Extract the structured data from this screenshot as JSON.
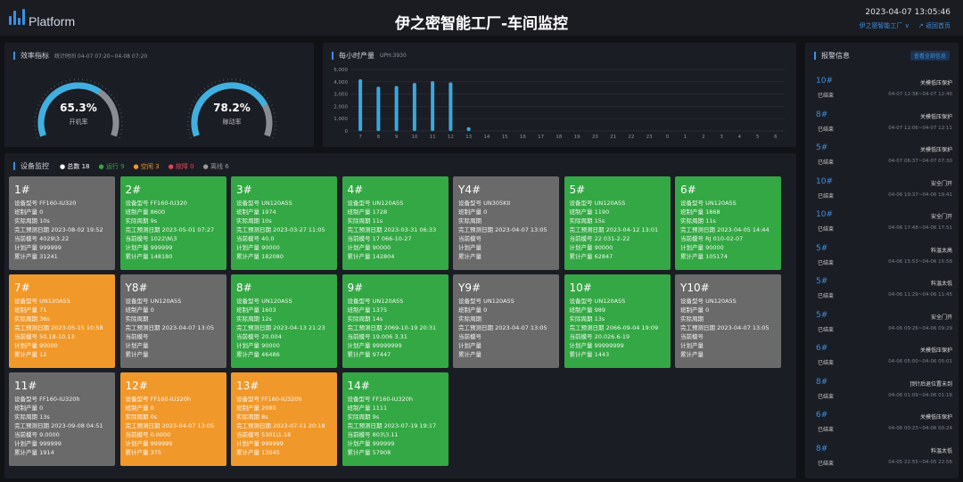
{
  "header": {
    "logo_text": "Platform",
    "title": "伊之密智能工厂-车间监控",
    "datetime": "2023-04-07 13:05:46",
    "factory_select": "伊之密智能工厂 ∨",
    "back_link": "↗ 返回首页"
  },
  "efficiency": {
    "title": "效率指标",
    "period": "统计时间 04-07 07:20~04-08 07:20",
    "gauges": [
      {
        "value": "65.3%",
        "percent": 65.3,
        "label": "开机率"
      },
      {
        "value": "78.2%",
        "percent": 78.2,
        "label": "稼动率"
      }
    ]
  },
  "colors": {
    "accent": "#3d8fe0",
    "running": "#34a844",
    "idle": "#f0982a",
    "offline": "#6a6a6a",
    "fault": "#e0455a"
  },
  "chart_data": {
    "type": "bar",
    "title": "每小时产量",
    "subtitle": "UPH:3930",
    "categories": [
      "7",
      "8",
      "9",
      "10",
      "11",
      "12",
      "13",
      "14",
      "15",
      "16",
      "17",
      "18",
      "19",
      "20",
      "21",
      "22",
      "23",
      "0",
      "1",
      "2",
      "3",
      "4",
      "5",
      "6"
    ],
    "values": [
      4200,
      3600,
      3650,
      3900,
      4050,
      3950,
      300,
      0,
      0,
      0,
      0,
      0,
      0,
      0,
      0,
      0,
      0,
      0,
      0,
      0,
      0,
      0,
      0,
      0
    ],
    "ylim": [
      0,
      5000
    ],
    "yticks": [
      "0",
      "1,000",
      "2,000",
      "3,000",
      "4,000",
      "5,000"
    ],
    "grid": true
  },
  "devices": {
    "title": "设备监控",
    "stats": [
      {
        "label": "总数",
        "value": "18",
        "color": "#ffffff"
      },
      {
        "label": "运行",
        "value": "9",
        "color": "#34a844"
      },
      {
        "label": "空闲",
        "value": "3",
        "color": "#f0982a"
      },
      {
        "label": "故障",
        "value": "0",
        "color": "#e0455a"
      },
      {
        "label": "离线",
        "value": "6",
        "color": "#9a9a9a"
      }
    ],
    "field_labels": [
      "设备型号",
      "班制产量",
      "实际周期",
      "完工预测日期",
      "当前模号",
      "计划产量",
      "累计产量"
    ],
    "cards": [
      {
        "name": "1#",
        "status": "off",
        "values": [
          "FF160-IU320",
          "0",
          "10s",
          "2023-08-02 19:52",
          "4029\\3.22",
          "999999",
          "31241"
        ]
      },
      {
        "name": "2#",
        "status": "run",
        "values": [
          "FF160-IU320",
          "8600",
          "9s",
          "2023-05-01 07:27",
          "1022\\N\\3",
          "999999",
          "148180"
        ]
      },
      {
        "name": "3#",
        "status": "run",
        "values": [
          "UN120A5S",
          "1974",
          "10s",
          "2023-03-27 11:05",
          "40.0",
          "90000",
          "182080"
        ]
      },
      {
        "name": "4#",
        "status": "run",
        "values": [
          "UN120A5S",
          "1728",
          "11s",
          "2023-03-31 06:33",
          "17 066-10-27",
          "90000",
          "142804"
        ]
      },
      {
        "name": "Y4#",
        "status": "off",
        "values": [
          "UN305KII",
          "0",
          "",
          "2023-04-07 13:05",
          "",
          "",
          ""
        ]
      },
      {
        "name": "5#",
        "status": "run",
        "values": [
          "UN120A5S",
          "1190",
          "15s",
          "2023-04-12 13:01",
          "22 031-2-22",
          "90000",
          "62847"
        ]
      },
      {
        "name": "6#",
        "status": "run",
        "values": [
          "UN120A5S",
          "1868",
          "11s",
          "2023-04-05 14:44",
          "RJ 010-02-07",
          "90000",
          "105174"
        ]
      },
      {
        "name": "7#",
        "status": "idle",
        "values": [
          "UN120A5S",
          "71",
          "36s",
          "2023-05-15 10:58",
          "50.18-10.13",
          "90000",
          "12"
        ]
      },
      {
        "name": "Y8#",
        "status": "off",
        "values": [
          "UN120A5S",
          "0",
          "",
          "2023-04-07 13:05",
          "",
          "",
          ""
        ]
      },
      {
        "name": "8#",
        "status": "run",
        "values": [
          "UN120A5S",
          "1603",
          "12s",
          "2023-04-13 21:23",
          "20.004",
          "90000",
          "46486"
        ]
      },
      {
        "name": "9#",
        "status": "run",
        "values": [
          "UN120A5S",
          "1375",
          "14s",
          "2069-10-19 20:31",
          "19.006 3.31",
          "99999999",
          "97447"
        ]
      },
      {
        "name": "Y9#",
        "status": "off",
        "values": [
          "UN120A5S",
          "0",
          "",
          "2023-04-07 13:05",
          "",
          "",
          ""
        ]
      },
      {
        "name": "10#",
        "status": "run",
        "values": [
          "UN120A5S",
          "989",
          "13s",
          "2066-09-04 19:09",
          "20.026.6-19",
          "99999999",
          "1443"
        ]
      },
      {
        "name": "Y10#",
        "status": "off",
        "values": [
          "UN120A5S",
          "0",
          "",
          "2023-04-07 13:05",
          "",
          "",
          ""
        ]
      },
      {
        "name": "11#",
        "status": "off",
        "values": [
          "FF160-IU320h",
          "0",
          "13s",
          "2023-09-08 04:51",
          "9.0000",
          "999999",
          "1914"
        ]
      },
      {
        "name": "12#",
        "status": "idle",
        "values": [
          "FF160-IU320h",
          "0",
          "0s",
          "2023-04-07 13:05",
          "0.0000",
          "999999",
          "375"
        ]
      },
      {
        "name": "13#",
        "status": "idle",
        "values": [
          "FF160-IU320h",
          "2080",
          "8s",
          "2023-07-11 20:18",
          "5301\\1.16",
          "999999",
          "13045"
        ]
      },
      {
        "name": "14#",
        "status": "run",
        "values": [
          "FF160-IU320h",
          "1111",
          "9s",
          "2023-07-19 19:17",
          "803\\3.11",
          "999999",
          "57908"
        ]
      }
    ]
  },
  "alarms": {
    "title": "报警信息",
    "link": "查看全部信息",
    "items": [
      {
        "machine": "10#",
        "status": "已结束",
        "reason": "关模低压保护",
        "time": "04-07 12:38~04-07 12:40"
      },
      {
        "machine": "8#",
        "status": "已结束",
        "reason": "关模低压保护",
        "time": "04-07 12:06~04-07 12:11"
      },
      {
        "machine": "5#",
        "status": "已结束",
        "reason": "关模低压保护",
        "time": "04-07 06:37~04-07 07:30"
      },
      {
        "machine": "10#",
        "status": "已结束",
        "reason": "安全门开",
        "time": "04-06 19:37~04-06 19:41"
      },
      {
        "machine": "10#",
        "status": "已结束",
        "reason": "安全门开",
        "time": "04-06 17:48~04-06 17:51"
      },
      {
        "machine": "5#",
        "status": "已结束",
        "reason": "料温太高",
        "time": "04-06 15:53~04-06 15:58"
      },
      {
        "machine": "5#",
        "status": "已结束",
        "reason": "料温太低",
        "time": "04-06 11:29~04-06 11:45"
      },
      {
        "machine": "5#",
        "status": "已结束",
        "reason": "安全门开",
        "time": "04-06 09:26~04-06 09:29"
      },
      {
        "machine": "6#",
        "status": "已结束",
        "reason": "关模低压保护",
        "time": "04-06 05:00~04-06 05:01"
      },
      {
        "machine": "8#",
        "status": "已结束",
        "reason": "顶针后退位置未到",
        "time": "04-06 01:09~04-06 01:16"
      },
      {
        "machine": "6#",
        "status": "已结束",
        "reason": "关模低压保护",
        "time": "04-06 00:23~04-06 00:24"
      },
      {
        "machine": "8#",
        "status": "已结束",
        "reason": "料温太低",
        "time": "04-05 22:55~04-05 22:56"
      }
    ]
  }
}
